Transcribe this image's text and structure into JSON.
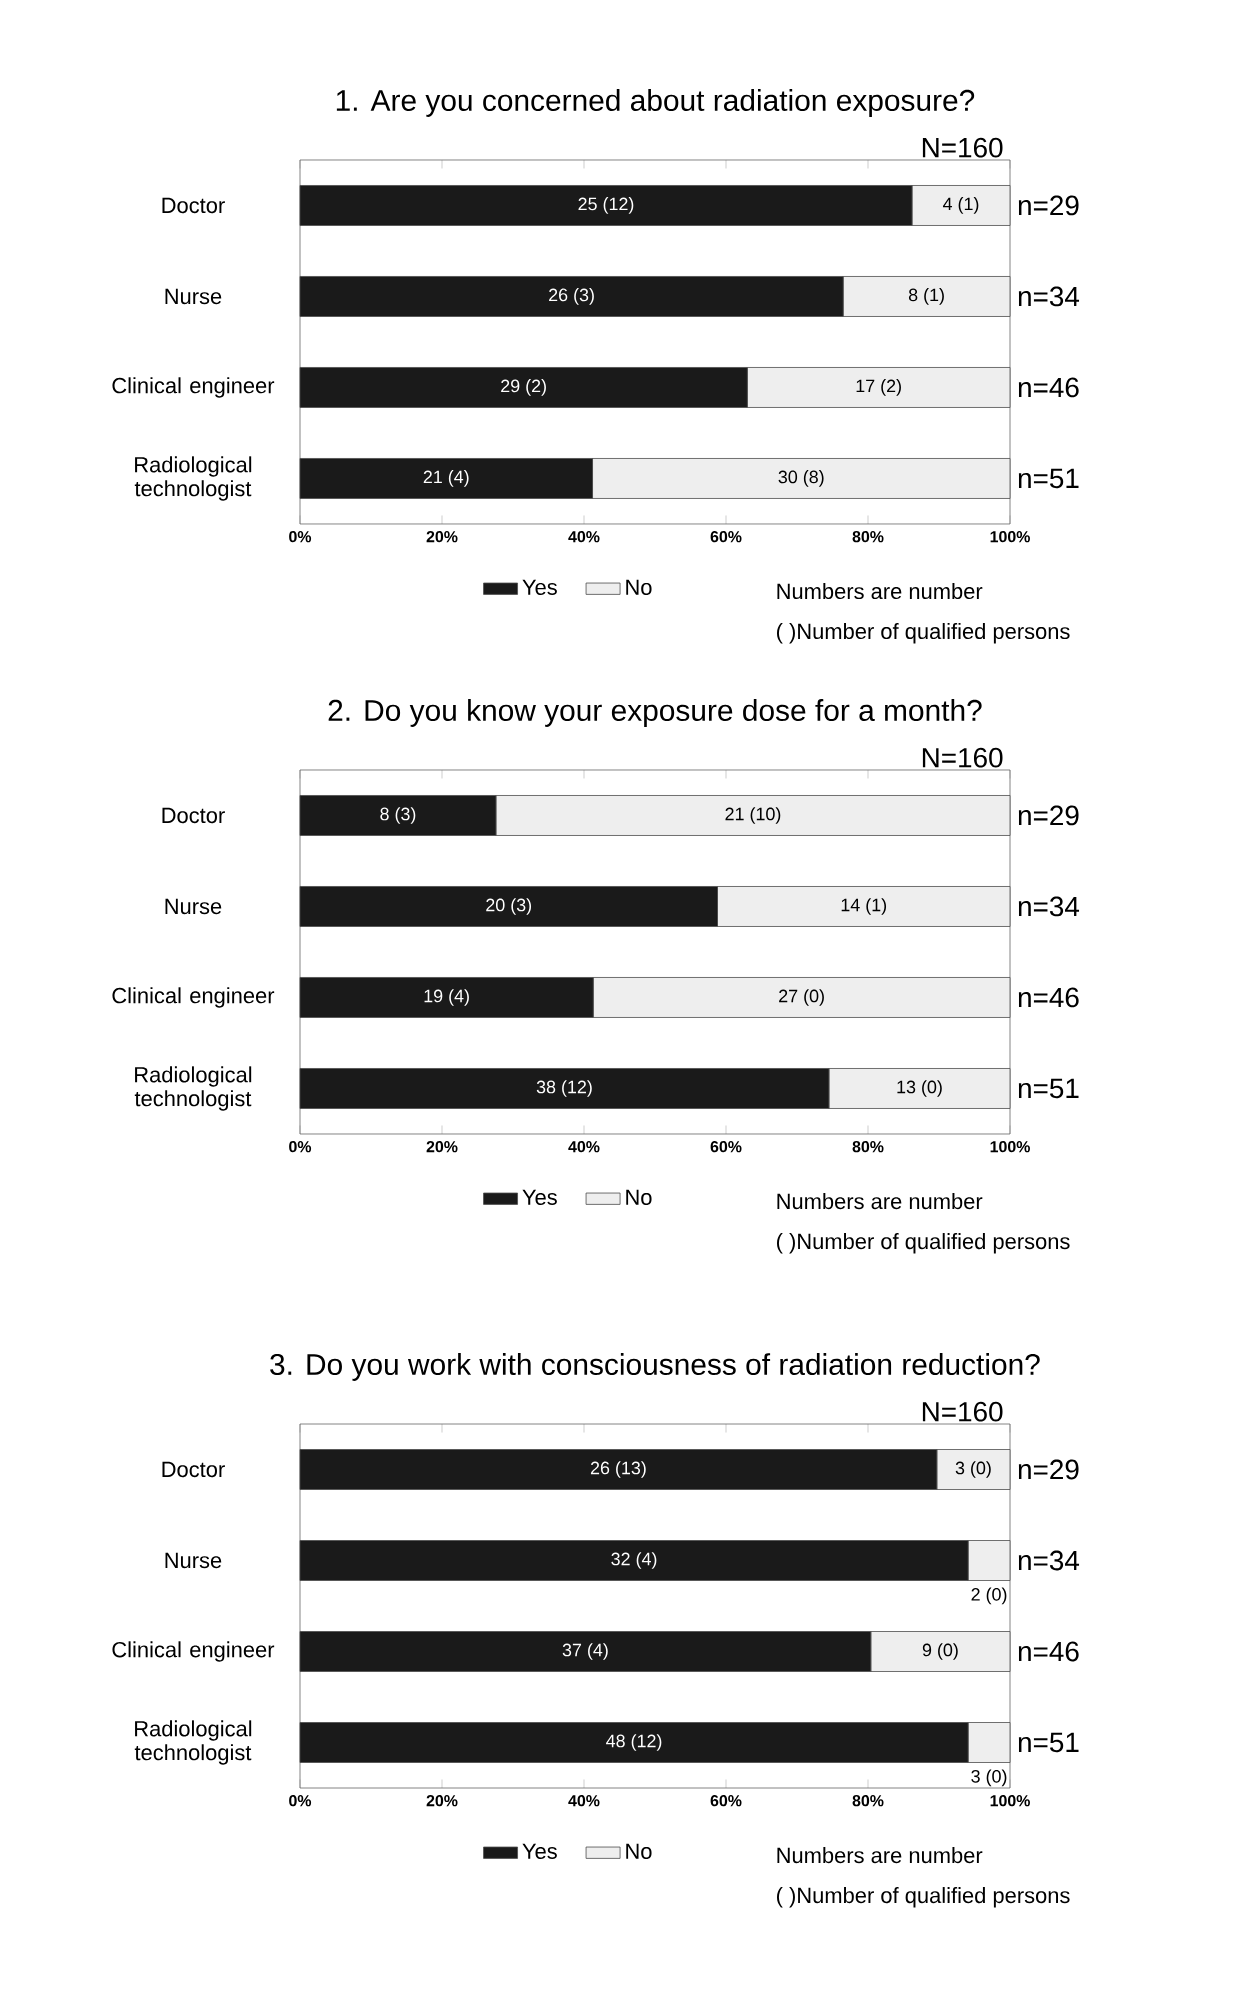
{
  "chart_data": [
    {
      "type": "bar",
      "orientation": "horizontal",
      "stacked": true,
      "title": "1. Are you concerned about radiation exposure?",
      "categories": [
        "Doctor",
        "Nurse",
        "Clinical engineer",
        "Radiological technologist"
      ],
      "series": [
        {
          "name": "Yes",
          "color": "#1a1a1a",
          "values": [
            86.2,
            76.5,
            63.0,
            41.2
          ]
        },
        {
          "name": "No",
          "color": "#eeeeee",
          "values": [
            13.8,
            23.5,
            37.0,
            58.8
          ]
        }
      ],
      "xlim": [
        0,
        100
      ],
      "xticks": [
        {
          "value": 0,
          "label": "0%"
        },
        {
          "value": 20,
          "label": "20%"
        },
        {
          "value": 40,
          "label": "40%"
        },
        {
          "value": 60,
          "label": "60%"
        },
        {
          "value": 80,
          "label": "80%"
        },
        {
          "value": 100,
          "label": "100%"
        }
      ],
      "legend": "bottom",
      "annotations": [
        "N=160",
        "n=29",
        "n=34",
        "n=46",
        "n=51",
        "Numbers are number",
        "( )Number of qualified persons",
        "25 (12)",
        "26 (3)",
        "29 (2)",
        "21 (4)",
        "4 (1)",
        "8 (1)",
        "17 (2)",
        "30 (8)"
      ]
    },
    {
      "type": "bar",
      "orientation": "horizontal",
      "stacked": true,
      "title": "2. Do you know your exposure dose for a month?",
      "categories": [
        "Doctor",
        "Nurse",
        "Clinical engineer",
        "Radiological technologist"
      ],
      "series": [
        {
          "name": "Yes",
          "color": "#1a1a1a",
          "values": [
            27.6,
            58.8,
            41.3,
            74.5
          ]
        },
        {
          "name": "No",
          "color": "#eeeeee",
          "values": [
            72.4,
            41.2,
            58.7,
            25.5
          ]
        }
      ],
      "xlim": [
        0,
        100
      ],
      "xticks": [
        {
          "value": 0,
          "label": "0%"
        },
        {
          "value": 20,
          "label": "20%"
        },
        {
          "value": 40,
          "label": "40%"
        },
        {
          "value": 60,
          "label": "60%"
        },
        {
          "value": 80,
          "label": "80%"
        },
        {
          "value": 100,
          "label": "100%"
        }
      ],
      "legend": "bottom",
      "annotations": [
        "N=160",
        "n=29",
        "n=34",
        "n=46",
        "n=51",
        "Numbers are number",
        "( )Number of qualified persons",
        "8 (3)",
        "20 (3)",
        "19 (4)",
        "38 (12)",
        "21 (10)",
        "14 (1)",
        "27 (0)",
        "13 (0)"
      ]
    },
    {
      "type": "bar",
      "orientation": "horizontal",
      "stacked": true,
      "title": "3. Do you work with consciousness of radiation reduction?",
      "categories": [
        "Doctor",
        "Nurse",
        "Clinical engineer",
        "Radiological technologist"
      ],
      "series": [
        {
          "name": "Yes",
          "color": "#1a1a1a",
          "values": [
            89.7,
            94.1,
            80.4,
            94.1
          ]
        },
        {
          "name": "No",
          "color": "#eeeeee",
          "values": [
            10.3,
            5.9,
            19.6,
            5.9
          ]
        }
      ],
      "xlim": [
        0,
        100
      ],
      "xticks": [
        {
          "value": 0,
          "label": "0%"
        },
        {
          "value": 20,
          "label": "20%"
        },
        {
          "value": 40,
          "label": "40%"
        },
        {
          "value": 60,
          "label": "60%"
        },
        {
          "value": 80,
          "label": "80%"
        },
        {
          "value": 100,
          "label": "100%"
        }
      ],
      "legend": "bottom",
      "annotations": [
        "N=160",
        "n=29",
        "n=34",
        "n=46",
        "n=51",
        "Numbers are number",
        "( )Number of qualified persons",
        "26 (13)",
        "32 (4)",
        "37 (4)",
        "48 (12)",
        "3 (0)",
        "2 (0)",
        "9 (0)",
        "3 (0)"
      ]
    }
  ]
}
